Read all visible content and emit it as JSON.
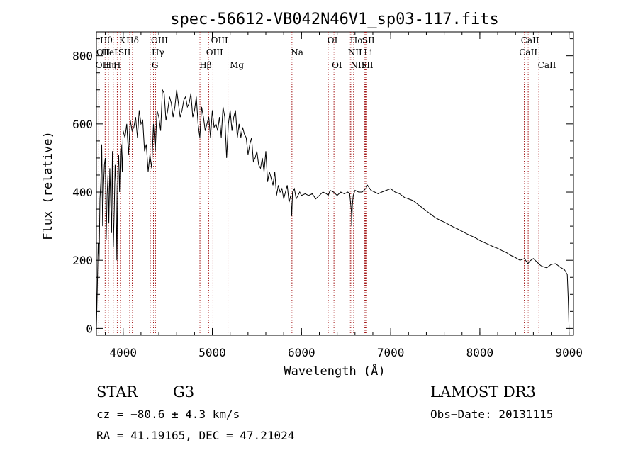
{
  "chart_data": {
    "type": "line",
    "title": "spec-56612-VB042N46V1_sp03-117.fits",
    "xlabel": "Wavelength (Å)",
    "ylabel": "Flux (relative)",
    "xlim": [
      3700,
      9050
    ],
    "ylim": [
      -20,
      870
    ],
    "xticks": [
      4000,
      5000,
      6000,
      7000,
      8000,
      9000
    ],
    "xtick_labels": [
      "4000",
      "5000",
      "6000",
      "7000",
      "8000",
      "9000"
    ],
    "yticks": [
      0,
      200,
      400,
      600,
      800
    ],
    "ytick_labels": [
      "0",
      "200",
      "400",
      "600",
      "800"
    ],
    "grid": false,
    "series": [
      {
        "name": "spectrum",
        "x": [
          3700,
          3710,
          3720,
          3730,
          3740,
          3750,
          3760,
          3770,
          3780,
          3790,
          3800,
          3810,
          3820,
          3830,
          3840,
          3850,
          3860,
          3870,
          3880,
          3890,
          3900,
          3910,
          3920,
          3930,
          3940,
          3950,
          3960,
          3970,
          3980,
          3990,
          4000,
          4020,
          4040,
          4060,
          4080,
          4100,
          4120,
          4140,
          4160,
          4180,
          4200,
          4220,
          4240,
          4260,
          4280,
          4300,
          4320,
          4340,
          4360,
          4380,
          4400,
          4420,
          4440,
          4460,
          4480,
          4500,
          4520,
          4540,
          4560,
          4580,
          4600,
          4620,
          4640,
          4660,
          4680,
          4700,
          4720,
          4740,
          4760,
          4780,
          4800,
          4820,
          4840,
          4860,
          4880,
          4900,
          4920,
          4940,
          4960,
          4980,
          5000,
          5020,
          5040,
          5060,
          5080,
          5100,
          5120,
          5140,
          5160,
          5180,
          5200,
          5220,
          5240,
          5260,
          5280,
          5300,
          5320,
          5340,
          5360,
          5380,
          5400,
          5420,
          5440,
          5460,
          5480,
          5500,
          5520,
          5540,
          5560,
          5580,
          5600,
          5620,
          5640,
          5660,
          5680,
          5700,
          5720,
          5740,
          5760,
          5780,
          5800,
          5820,
          5840,
          5860,
          5880,
          5890,
          5900,
          5920,
          5940,
          5960,
          5980,
          6000,
          6040,
          6080,
          6120,
          6160,
          6200,
          6240,
          6280,
          6300,
          6320,
          6360,
          6400,
          6440,
          6480,
          6520,
          6540,
          6550,
          6560,
          6563,
          6570,
          6580,
          6600,
          6640,
          6680,
          6700,
          6720,
          6740,
          6780,
          6820,
          6860,
          6900,
          6950,
          7000,
          7050,
          7100,
          7150,
          7200,
          7250,
          7300,
          7350,
          7400,
          7450,
          7500,
          7550,
          7600,
          7650,
          7700,
          7750,
          7800,
          7850,
          7900,
          7950,
          8000,
          8050,
          8100,
          8150,
          8200,
          8250,
          8300,
          8350,
          8400,
          8450,
          8500,
          8540,
          8560,
          8600,
          8640,
          8680,
          8700,
          8750,
          8800,
          8850,
          8900,
          8950,
          8980,
          8990,
          9000
        ],
        "y": [
          0,
          120,
          250,
          200,
          380,
          430,
          540,
          300,
          420,
          480,
          500,
          260,
          390,
          450,
          310,
          470,
          380,
          280,
          520,
          240,
          350,
          480,
          420,
          200,
          460,
          510,
          400,
          520,
          540,
          460,
          580,
          560,
          600,
          510,
          610,
          580,
          590,
          620,
          560,
          640,
          600,
          610,
          520,
          540,
          460,
          510,
          470,
          600,
          520,
          640,
          620,
          580,
          700,
          690,
          610,
          640,
          680,
          660,
          620,
          650,
          700,
          660,
          620,
          640,
          670,
          680,
          650,
          660,
          690,
          620,
          640,
          680,
          600,
          560,
          650,
          620,
          580,
          600,
          620,
          560,
          640,
          590,
          600,
          580,
          620,
          560,
          650,
          620,
          500,
          600,
          640,
          580,
          620,
          640,
          560,
          600,
          560,
          590,
          570,
          560,
          510,
          540,
          560,
          490,
          500,
          520,
          480,
          470,
          500,
          460,
          520,
          430,
          460,
          440,
          420,
          460,
          390,
          420,
          400,
          410,
          380,
          400,
          420,
          370,
          390,
          330,
          400,
          410,
          380,
          390,
          400,
          390,
          395,
          390,
          395,
          380,
          390,
          400,
          395,
          390,
          405,
          400,
          390,
          400,
          395,
          400,
          395,
          370,
          340,
          300,
          360,
          390,
          405,
          400,
          400,
          405,
          410,
          420,
          405,
          400,
          395,
          400,
          405,
          410,
          400,
          395,
          385,
          380,
          375,
          365,
          355,
          345,
          335,
          325,
          318,
          312,
          305,
          298,
          292,
          285,
          278,
          272,
          266,
          258,
          252,
          246,
          240,
          235,
          228,
          222,
          214,
          208,
          200,
          205,
          190,
          198,
          205,
          195,
          185,
          182,
          178,
          188,
          190,
          180,
          172,
          158,
          90,
          0
        ],
        "color": "#000000"
      }
    ],
    "lines": [
      {
        "name": "Hθ",
        "x": 3798
      },
      {
        "name": "OII",
        "x": 3727
      },
      {
        "name": "Hη",
        "x": 3835
      },
      {
        "name": "HeI",
        "x": 3889
      },
      {
        "name": "K",
        "x": 3934
      },
      {
        "name": "H",
        "x": 3969
      },
      {
        "name": "Hδ",
        "x": 4102
      },
      {
        "name": "SII",
        "x": 4072
      },
      {
        "name": "G",
        "x": 4304
      },
      {
        "name": "Hγ",
        "x": 4340
      },
      {
        "name": "OIII",
        "x": 4363
      },
      {
        "name": "Hβ",
        "x": 4861
      },
      {
        "name": "OIII",
        "x": 4959
      },
      {
        "name": "OIII",
        "x": 5007
      },
      {
        "name": "Mg",
        "x": 5175
      },
      {
        "name": "Na",
        "x": 5893
      },
      {
        "name": "OI",
        "x": 6300
      },
      {
        "name": "OI",
        "x": 6364
      },
      {
        "name": "NII",
        "x": 6548
      },
      {
        "name": "Hα",
        "x": 6563
      },
      {
        "name": "NII",
        "x": 6584
      },
      {
        "name": "Li",
        "x": 6708
      },
      {
        "name": "SII",
        "x": 6717
      },
      {
        "name": "SII",
        "x": 6731
      },
      {
        "name": "CaII",
        "x": 8498
      },
      {
        "name": "CaII",
        "x": 8542
      },
      {
        "name": "CaII",
        "x": 8662
      }
    ],
    "line_labels": [
      {
        "text": "Hθ",
        "x": 3740,
        "row": 1
      },
      {
        "text": "Hδ",
        "x": 4035,
        "row": 1
      },
      {
        "text": "K",
        "x": 3955,
        "row": 1
      },
      {
        "text": "OIII",
        "x": 4312,
        "row": 1
      },
      {
        "text": "OIII",
        "x": 4985,
        "row": 1
      },
      {
        "text": "OI",
        "x": 6290,
        "row": 1
      },
      {
        "text": "Hα",
        "x": 6545,
        "row": 1
      },
      {
        "text": "SII",
        "x": 6680,
        "row": 1
      },
      {
        "text": "CaII",
        "x": 8460,
        "row": 1
      },
      {
        "text": "OII",
        "x": 3700,
        "row": 2
      },
      {
        "text": "HeI",
        "x": 3760,
        "row": 2
      },
      {
        "text": "SII",
        "x": 3945,
        "row": 2
      },
      {
        "text": "Hγ",
        "x": 4320,
        "row": 2
      },
      {
        "text": "OIII",
        "x": 4930,
        "row": 2
      },
      {
        "text": "Na",
        "x": 5880,
        "row": 2
      },
      {
        "text": "NII",
        "x": 6520,
        "row": 2
      },
      {
        "text": "Li",
        "x": 6700,
        "row": 2
      },
      {
        "text": "CaII",
        "x": 8440,
        "row": 2
      },
      {
        "text": "OII",
        "x": 3690,
        "row": 3
      },
      {
        "text": "Hη",
        "x": 3785,
        "row": 3
      },
      {
        "text": "H",
        "x": 3890,
        "row": 3
      },
      {
        "text": "G",
        "x": 4320,
        "row": 3
      },
      {
        "text": "Hβ",
        "x": 4855,
        "row": 3
      },
      {
        "text": "Mg",
        "x": 5195,
        "row": 3
      },
      {
        "text": "OI",
        "x": 6340,
        "row": 3
      },
      {
        "text": "NII",
        "x": 6550,
        "row": 3
      },
      {
        "text": "SII",
        "x": 6665,
        "row": 3
      },
      {
        "text": "CaII",
        "x": 8650,
        "row": 3
      }
    ]
  },
  "info": {
    "object_class": "STAR",
    "subclass": "G3",
    "survey": "LAMOST DR3",
    "cz": "cz = −80.6 ± 4.3 km/s",
    "obs_date": "Obs−Date: 20131115",
    "coords": "RA =  41.19165, DEC =  47.21024"
  },
  "colors": {
    "line_marker": "#a31515",
    "spectrum": "#000000",
    "axes": "#000000"
  }
}
